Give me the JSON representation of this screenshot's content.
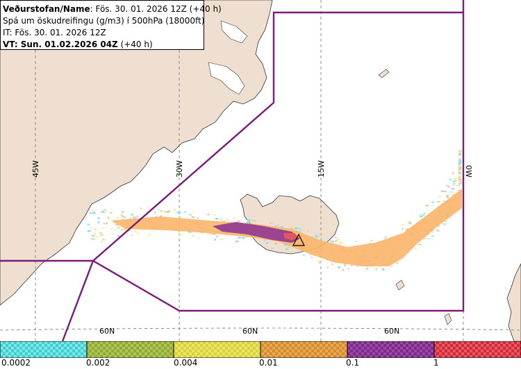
{
  "header": {
    "title_bold": "Veðurstofan/Name",
    "title_rest": ": Fös. 30. 01. 2026 12Z (+40 h)",
    "forecast": "Spá um öskudreifingu (g/m3) í 500hPa (18000ft)",
    "issue_time": "IT: Fös. 30. 01. 2026 12Z",
    "valid_label": "VT: Sun. 01.02.2026 04Z",
    "valid_rest": " (+40 h)"
  },
  "map": {
    "longitude_labels": [
      "45W",
      "30W",
      "15W",
      "0W"
    ],
    "latitude_labels": [
      "60N",
      "60N",
      "60N"
    ],
    "volcano_icon": "triangle-volcano-icon",
    "colors": {
      "land": "#efdfd1",
      "sea": "#ffffff",
      "boundary": "#7a1a7a",
      "grid": "#6e6e6e"
    }
  },
  "legend": {
    "thresholds": [
      "0.0002",
      "0.002",
      "0.004",
      "0.01",
      "0.1",
      "1"
    ],
    "colors": [
      "#3fcfd0",
      "#8fa83a",
      "#d8d23a",
      "#d58a2c",
      "#7a2a86",
      "#d02a36"
    ]
  }
}
